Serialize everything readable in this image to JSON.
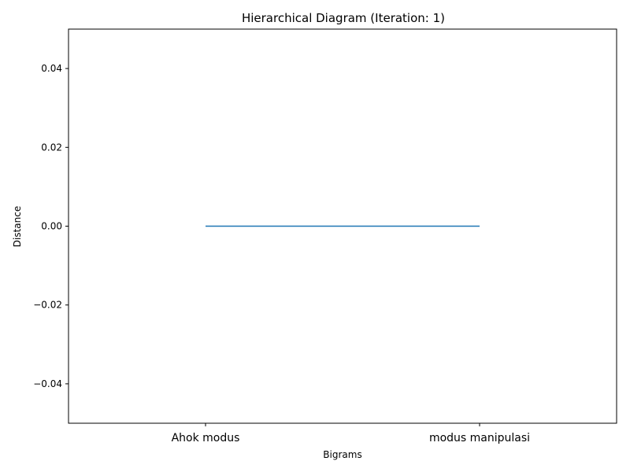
{
  "chart_data": {
    "type": "line",
    "title": "Hierarchical Diagram (Iteration: 1)",
    "xlabel": "Bigrams",
    "ylabel": "Distance",
    "categories": [
      "Ahok modus",
      "modus manipulasi"
    ],
    "ylim": [
      -0.05,
      0.05
    ],
    "yticks": [
      0.04,
      0.02,
      0.0,
      -0.02,
      -0.04
    ],
    "ytick_labels": [
      "0.04",
      "0.02",
      "0.00",
      "−0.02",
      "−0.04"
    ],
    "series": [
      {
        "x": [
          "Ahok modus",
          "modus manipulasi"
        ],
        "values": [
          0,
          0
        ],
        "color": "#1f77b4"
      }
    ],
    "grid": false,
    "legend": "none"
  }
}
